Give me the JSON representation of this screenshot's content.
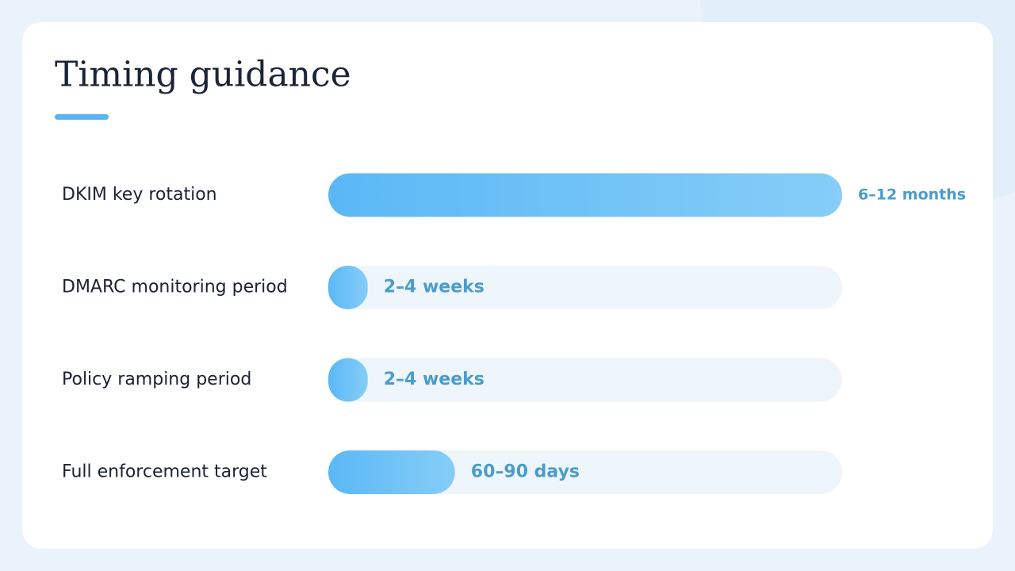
{
  "chart_data": {
    "type": "bar",
    "title": "Timing guidance",
    "categories": [
      "DKIM key rotation",
      "DMARC monitoring period",
      "Policy ramping period",
      "Full enforcement target"
    ],
    "values": [
      365,
      28,
      28,
      90
    ],
    "value_labels": [
      "6–12 months",
      "2–4 weeks",
      "2–4 weeks",
      "60–90 days"
    ],
    "color": "#5ab8f5"
  }
}
